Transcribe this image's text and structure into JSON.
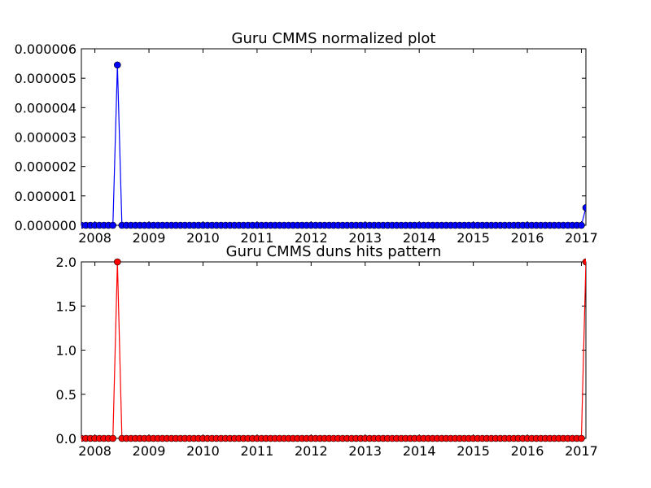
{
  "chart_data": [
    {
      "type": "line",
      "title": "Guru CMMS normalized plot",
      "xlabel": "",
      "ylabel": "",
      "x_ticks": [
        "2008",
        "2009",
        "2010",
        "2011",
        "2012",
        "2013",
        "2014",
        "2015",
        "2016",
        "2017"
      ],
      "y_ticks": [
        "0.000000",
        "0.000001",
        "0.000002",
        "0.000003",
        "0.000004",
        "0.000005",
        "0.000006"
      ],
      "xlim": [
        "2007-10",
        "2017-02"
      ],
      "ylim": [
        0,
        6e-06
      ],
      "grid": false,
      "series": [
        {
          "color": "#0000ff",
          "marker": "circle",
          "start_month": "2007-10",
          "peaks": {
            "2008-06": 5.45e-06,
            "2017-02": 6e-07
          }
        }
      ]
    },
    {
      "type": "line",
      "title": "Guru CMMS duns hits pattern",
      "xlabel": "",
      "ylabel": "",
      "x_ticks": [
        "2008",
        "2009",
        "2010",
        "2011",
        "2012",
        "2013",
        "2014",
        "2015",
        "2016",
        "2017"
      ],
      "y_ticks": [
        "0.0",
        "0.5",
        "1.0",
        "1.5",
        "2.0"
      ],
      "xlim": [
        "2007-10",
        "2017-02"
      ],
      "ylim": [
        0,
        2
      ],
      "grid": false,
      "series": [
        {
          "color": "#ff0000",
          "marker": "circle",
          "start_month": "2007-10",
          "peaks": {
            "2008-06": 2,
            "2017-02": 2
          }
        }
      ]
    }
  ]
}
